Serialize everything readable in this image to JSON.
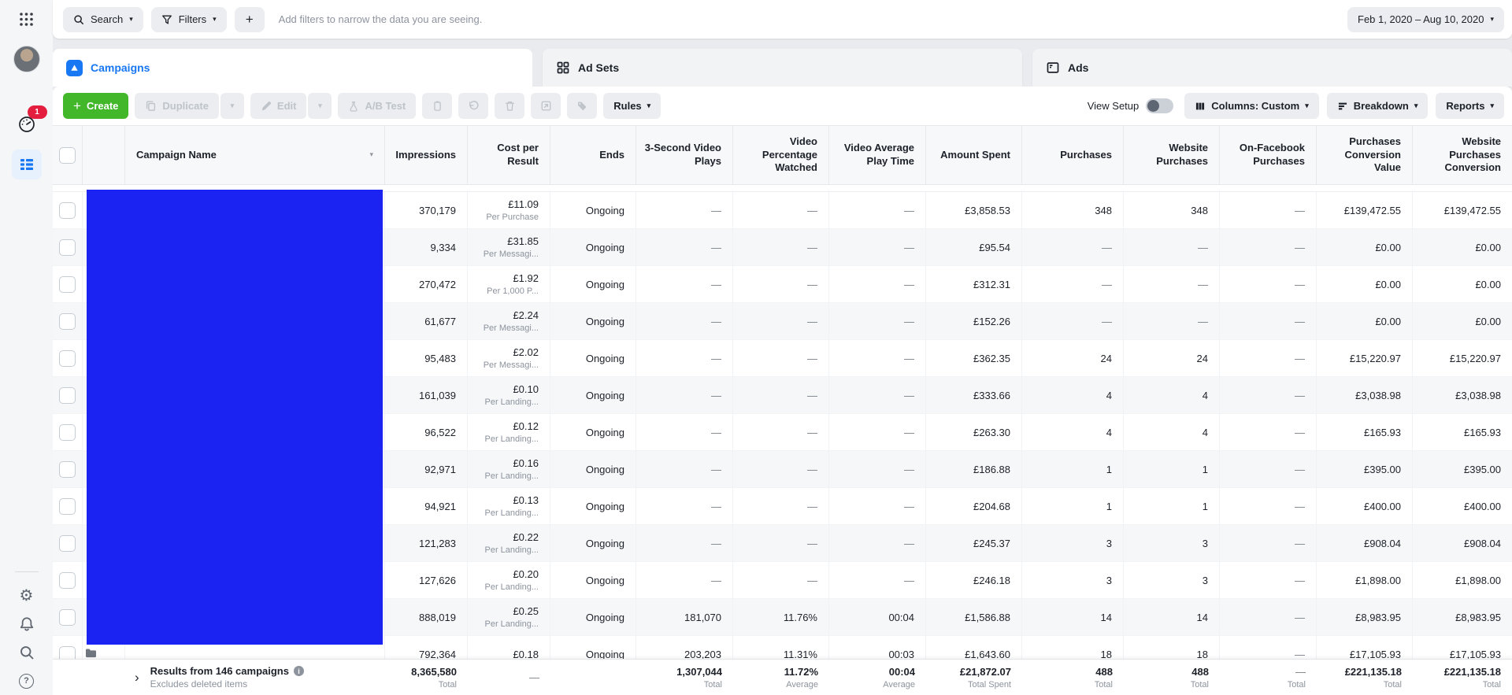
{
  "colors": {
    "accent_blue": "#1877f2",
    "create_green": "#42b72a",
    "redaction_blue": "#1b23f2",
    "badge_red": "#e41e3f"
  },
  "icons": {
    "apps": "grid-of-dots",
    "search": "magnifier",
    "filters": "funnel",
    "add": "+",
    "date": "caret",
    "ads_manager": "speedometer",
    "campaigns_nav": "blue-table-rows",
    "settings": "gear",
    "notifications": "bell",
    "global_search": "magnifier",
    "help": "question-circle",
    "campaigns_tab": "blue-folder-arrow",
    "ad_sets_tab": "four-squares",
    "ads_tab": "page-card",
    "duplicate": "two-sheets",
    "edit": "pencil",
    "ab_test": "flask",
    "clipboard": "clipboard",
    "undo": "curved-arrow",
    "delete": "trash",
    "export": "square-arrow",
    "tag": "tag",
    "columns": "three-bars",
    "breakdown": "stacked-lines",
    "footer_expand": "chevron-right",
    "info": "i-circle"
  },
  "sidebar": {
    "notification_count": "1"
  },
  "topbar": {
    "search_label": "Search",
    "filters_label": "Filters",
    "add_button": "+",
    "filter_placeholder": "Add filters to narrow the data you are seeing.",
    "date_range": "Feb 1, 2020 – Aug 10, 2020"
  },
  "tabs": [
    {
      "label": "Campaigns",
      "active": true
    },
    {
      "label": "Ad Sets",
      "active": false
    },
    {
      "label": "Ads",
      "active": false
    }
  ],
  "toolbar": {
    "create_label": "Create",
    "duplicate_label": "Duplicate",
    "edit_label": "Edit",
    "ab_test_label": "A/B Test",
    "rules_label": "Rules",
    "view_setup_label": "View Setup",
    "columns_label": "Columns: Custom",
    "breakdown_label": "Breakdown",
    "reports_label": "Reports"
  },
  "table": {
    "headers": [
      "Campaign Name",
      "Impressions",
      "Cost per Result",
      "Ends",
      "3-Second Video Plays",
      "Video Percentage Watched",
      "Video Average Play Time",
      "Amount Spent",
      "Purchases",
      "Website Purchases",
      "On-Facebook Purchases",
      "Purchases Conversion Value",
      "Website Purchases Conversion"
    ],
    "rows": [
      [
        "370,179",
        "£11.09",
        "Per Purchase",
        "Ongoing",
        "—",
        "—",
        "—",
        "£3,858.53",
        "348",
        "348",
        "—",
        "£139,472.55",
        "£139,472.55"
      ],
      [
        "9,334",
        "£31.85",
        "Per Messagi...",
        "Ongoing",
        "—",
        "—",
        "—",
        "£95.54",
        "—",
        "—",
        "—",
        "£0.00",
        "£0.00"
      ],
      [
        "270,472",
        "£1.92",
        "Per 1,000 P...",
        "Ongoing",
        "—",
        "—",
        "—",
        "£312.31",
        "—",
        "—",
        "—",
        "£0.00",
        "£0.00"
      ],
      [
        "61,677",
        "£2.24",
        "Per Messagi...",
        "Ongoing",
        "—",
        "—",
        "—",
        "£152.26",
        "—",
        "—",
        "—",
        "£0.00",
        "£0.00"
      ],
      [
        "95,483",
        "£2.02",
        "Per Messagi...",
        "Ongoing",
        "—",
        "—",
        "—",
        "£362.35",
        "24",
        "24",
        "—",
        "£15,220.97",
        "£15,220.97"
      ],
      [
        "161,039",
        "£0.10",
        "Per Landing...",
        "Ongoing",
        "—",
        "—",
        "—",
        "£333.66",
        "4",
        "4",
        "—",
        "£3,038.98",
        "£3,038.98"
      ],
      [
        "96,522",
        "£0.12",
        "Per Landing...",
        "Ongoing",
        "—",
        "—",
        "—",
        "£263.30",
        "4",
        "4",
        "—",
        "£165.93",
        "£165.93"
      ],
      [
        "92,971",
        "£0.16",
        "Per Landing...",
        "Ongoing",
        "—",
        "—",
        "—",
        "£186.88",
        "1",
        "1",
        "—",
        "£395.00",
        "£395.00"
      ],
      [
        "94,921",
        "£0.13",
        "Per Landing...",
        "Ongoing",
        "—",
        "—",
        "—",
        "£204.68",
        "1",
        "1",
        "—",
        "£400.00",
        "£400.00"
      ],
      [
        "121,283",
        "£0.22",
        "Per Landing...",
        "Ongoing",
        "—",
        "—",
        "—",
        "£245.37",
        "3",
        "3",
        "—",
        "£908.04",
        "£908.04"
      ],
      [
        "127,626",
        "£0.20",
        "Per Landing...",
        "Ongoing",
        "—",
        "—",
        "—",
        "£246.18",
        "3",
        "3",
        "—",
        "£1,898.00",
        "£1,898.00"
      ],
      [
        "888,019",
        "£0.25",
        "Per Landing...",
        "Ongoing",
        "181,070",
        "11.76%",
        "00:04",
        "£1,586.88",
        "14",
        "14",
        "—",
        "£8,983.95",
        "£8,983.95"
      ],
      [
        "792,364",
        "£0.18",
        "",
        "Ongoing",
        "203,203",
        "11.31%",
        "00:03",
        "£1,643.60",
        "18",
        "18",
        "—",
        "£17,105.93",
        "£17,105.93"
      ]
    ],
    "footer": {
      "title": "Results from 146 campaigns",
      "subtitle": "Excludes deleted items",
      "cells": [
        {
          "v": "8,365,580",
          "s": "Total"
        },
        {
          "v": "—",
          "s": ""
        },
        {
          "v": "",
          "s": ""
        },
        {
          "v": "1,307,044",
          "s": "Total"
        },
        {
          "v": "11.72%",
          "s": "Average"
        },
        {
          "v": "00:04",
          "s": "Average"
        },
        {
          "v": "£21,872.07",
          "s": "Total Spent"
        },
        {
          "v": "488",
          "s": "Total"
        },
        {
          "v": "488",
          "s": "Total"
        },
        {
          "v": "—",
          "s": "Total"
        },
        {
          "v": "£221,135.18",
          "s": "Total"
        },
        {
          "v": "£221,135.18",
          "s": "Total"
        }
      ]
    }
  }
}
